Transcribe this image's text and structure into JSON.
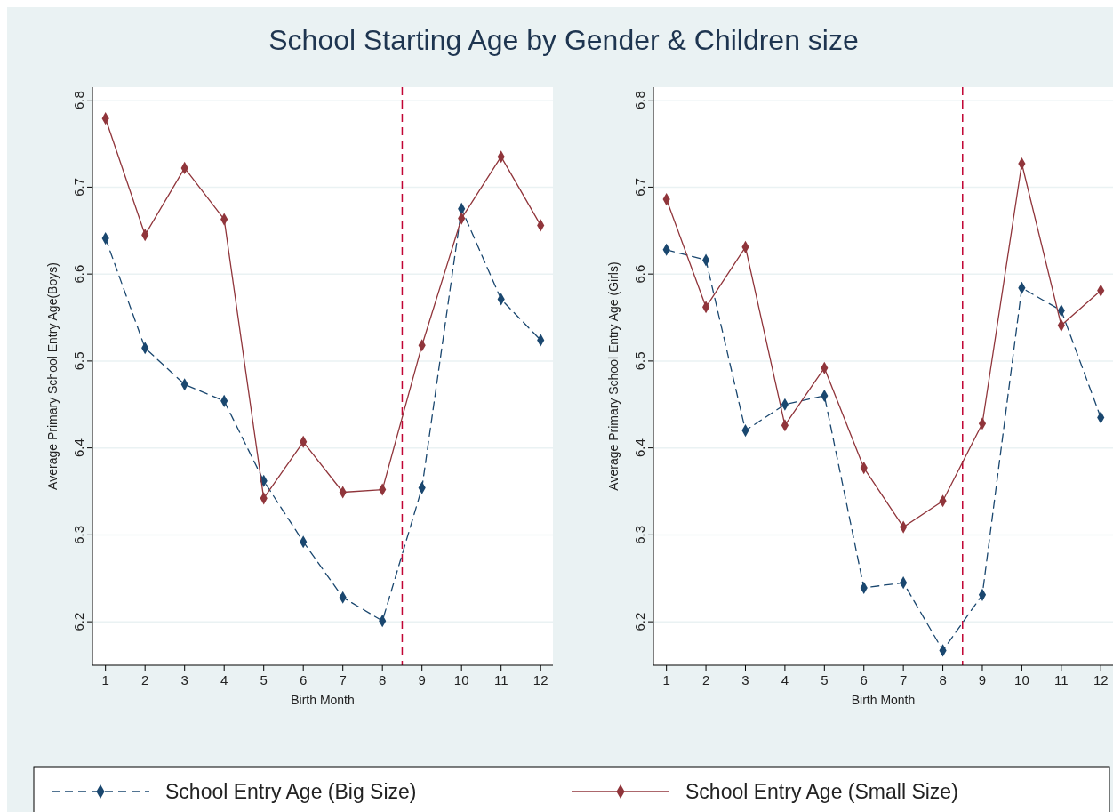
{
  "chart_data": [
    {
      "type": "line",
      "title": "School Starting Age by Gender & Children size",
      "xlabel": "Birth Month",
      "ylabel": "Average Primary School Entry Age(Boys)",
      "x": [
        1,
        2,
        3,
        4,
        5,
        6,
        7,
        8,
        9,
        10,
        11,
        12
      ],
      "xlim": [
        0.67,
        12.31
      ],
      "xticks": [
        1,
        2,
        3,
        4,
        5,
        6,
        7,
        8,
        9,
        10,
        11,
        12
      ],
      "ylim": [
        6.15,
        6.815
      ],
      "yticks": [
        6.2,
        6.3,
        6.4,
        6.5,
        6.6,
        6.7,
        6.8
      ],
      "grid": "y",
      "marker": "diamond",
      "legend": "bottom",
      "ref_lines": [
        {
          "axis": "x",
          "value": 8.5,
          "color": "#c10534",
          "line_style": "dashed"
        }
      ],
      "series": [
        {
          "name": "School Entry Age (Big Size)",
          "color": "#1a476f",
          "line_style": "dashed",
          "values": [
            6.641,
            6.515,
            6.473,
            6.454,
            6.362,
            6.292,
            6.228,
            6.201,
            6.354,
            6.675,
            6.571,
            6.524
          ]
        },
        {
          "name": "School Entry Age (Small Size)",
          "color": "#90353b",
          "line_style": "solid",
          "values": [
            6.779,
            6.645,
            6.722,
            6.663,
            6.342,
            6.407,
            6.349,
            6.352,
            6.518,
            6.664,
            6.735,
            6.656
          ]
        }
      ]
    },
    {
      "type": "line",
      "xlabel": "Birth Month",
      "ylabel": "Average Primary School Entry Age (Girls)",
      "x": [
        1,
        2,
        3,
        4,
        5,
        6,
        7,
        8,
        9,
        10,
        11,
        12
      ],
      "xlim": [
        0.67,
        12.31
      ],
      "xticks": [
        1,
        2,
        3,
        4,
        5,
        6,
        7,
        8,
        9,
        10,
        11,
        12
      ],
      "ylim": [
        6.15,
        6.815
      ],
      "yticks": [
        6.2,
        6.3,
        6.4,
        6.5,
        6.6,
        6.7,
        6.8
      ],
      "grid": "y",
      "marker": "diamond",
      "ref_lines": [
        {
          "axis": "x",
          "value": 8.5,
          "color": "#c10534",
          "line_style": "dashed"
        }
      ],
      "series": [
        {
          "color": "#1a476f",
          "line_style": "dashed",
          "values": [
            6.628,
            6.616,
            6.42,
            6.45,
            6.46,
            6.239,
            6.245,
            6.167,
            6.231,
            6.584,
            6.558,
            6.435
          ]
        },
        {
          "color": "#90353b",
          "line_style": "solid",
          "values": [
            6.686,
            6.562,
            6.631,
            6.426,
            6.492,
            6.377,
            6.309,
            6.339,
            6.428,
            6.727,
            6.541,
            6.581
          ]
        }
      ]
    }
  ]
}
